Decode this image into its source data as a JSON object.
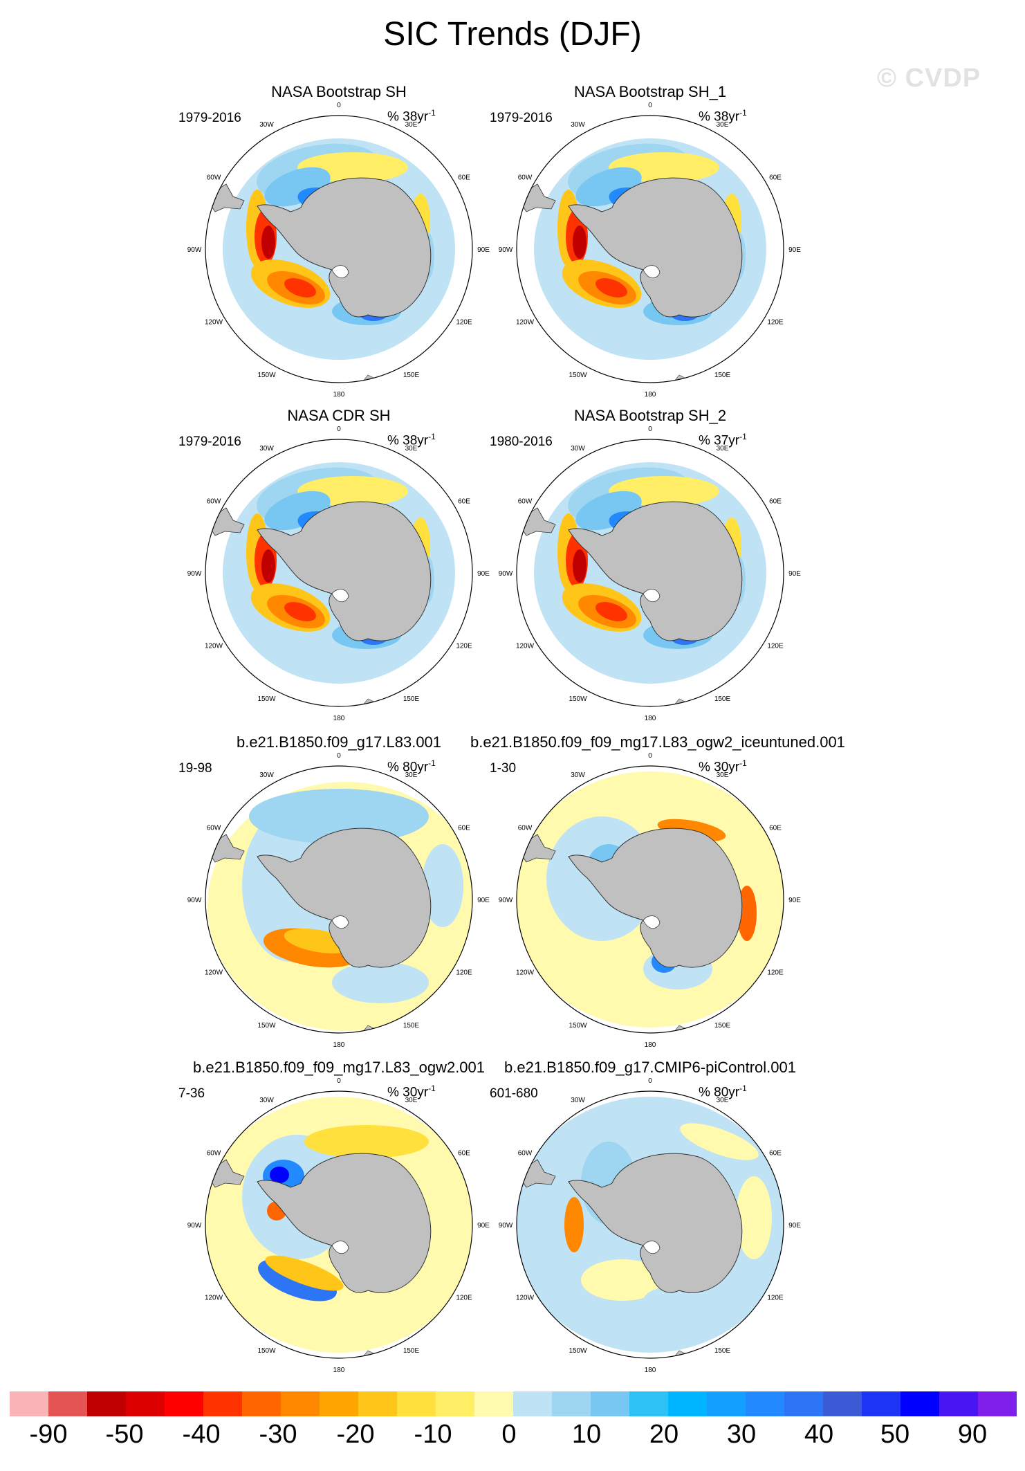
{
  "figure": {
    "title": "SIC Trends (DJF)",
    "watermark": "© CVDP"
  },
  "panels": [
    {
      "title": "NASA Bootstrap SH",
      "period": "1979-2016",
      "units": "% 38yr",
      "units_exp": "-1",
      "pattern": "obs"
    },
    {
      "title": "NASA Bootstrap SH_1",
      "period": "1979-2016",
      "units": "% 38yr",
      "units_exp": "-1",
      "pattern": "obs"
    },
    {
      "title": "NASA CDR SH",
      "period": "1979-2016",
      "units": "% 38yr",
      "units_exp": "-1",
      "pattern": "obs"
    },
    {
      "title": "NASA Bootstrap SH_2",
      "period": "1980-2016",
      "units": "% 37yr",
      "units_exp": "-1",
      "pattern": "obs"
    },
    {
      "title": "b.e21.B1850.f09_g17.L83.001",
      "period": "19-98",
      "units": "% 80yr",
      "units_exp": "-1",
      "pattern": "model_a"
    },
    {
      "title": "b.e21.B1850.f09_f09_mg17.L83_ogw2_iceuntuned.001",
      "period": "1-30",
      "units": "% 30yr",
      "units_exp": "-1",
      "pattern": "model_b"
    },
    {
      "title": "b.e21.B1850.f09_f09_mg17.L83_ogw2.001",
      "period": "7-36",
      "units": "% 30yr",
      "units_exp": "-1",
      "pattern": "model_c"
    },
    {
      "title": "b.e21.B1850.f09_g17.CMIP6-piControl.001",
      "period": "601-680",
      "units": "% 80yr",
      "units_exp": "-1",
      "pattern": "model_d"
    }
  ],
  "map": {
    "longitude_labels": [
      "0",
      "30E",
      "60E",
      "90E",
      "120E",
      "150E",
      "180",
      "150W",
      "120W",
      "90W",
      "60W",
      "30W"
    ],
    "land_color": "#c0c0c0",
    "ocean_color": "#ffffff"
  },
  "colorbar": {
    "colors": [
      "#f9b4b6",
      "#e45454",
      "#c00000",
      "#dd0000",
      "#ff0000",
      "#ff3300",
      "#ff6600",
      "#ff8800",
      "#ffa500",
      "#ffc519",
      "#ffe03c",
      "#ffee66",
      "#fffaae",
      "#bfe2f4",
      "#9ed5f0",
      "#78c7f2",
      "#2ec1f6",
      "#00b5ff",
      "#139fff",
      "#2289ff",
      "#2c75f4",
      "#3a5ad6",
      "#1d34f5",
      "#0000ff",
      "#4716f3",
      "#7f20ea"
    ],
    "labels": [
      "-90",
      "-50",
      "-40",
      "-30",
      "-20",
      "-10",
      "0",
      "10",
      "20",
      "30",
      "40",
      "50",
      "90"
    ]
  }
}
